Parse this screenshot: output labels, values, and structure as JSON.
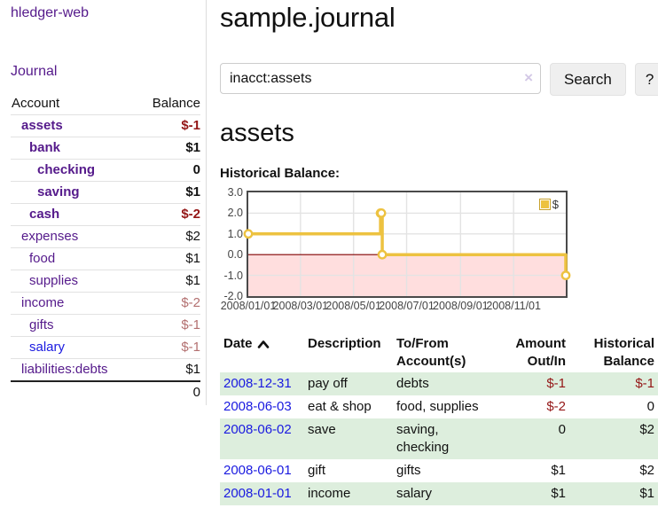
{
  "colors": {
    "link_purple": "#551a8b",
    "link_blue": "#1a1ae0",
    "negative": "#941616",
    "muted_negative": "#b37070",
    "row_green": "#ddeedd",
    "series_gold": "#edc240"
  },
  "sidebar": {
    "brand": "hledger-web",
    "journal_link": "Journal",
    "accounts_table": {
      "headers": [
        "Account",
        "Balance"
      ],
      "rows": [
        {
          "account": "assets",
          "balance": "$-1",
          "depth": 1,
          "bold": true,
          "balance_style": "negative"
        },
        {
          "account": "bank",
          "balance": "$1",
          "depth": 2,
          "bold": true,
          "balance_style": "normal"
        },
        {
          "account": "checking",
          "balance": "0",
          "depth": 3,
          "bold": true,
          "balance_style": "normal"
        },
        {
          "account": "saving",
          "balance": "$1",
          "depth": 3,
          "bold": true,
          "balance_style": "normal"
        },
        {
          "account": "cash",
          "balance": "$-2",
          "depth": 2,
          "bold": true,
          "balance_style": "negative"
        },
        {
          "account": "expenses",
          "balance": "$2",
          "depth": 1,
          "bold": false,
          "balance_style": "normal"
        },
        {
          "account": "food",
          "balance": "$1",
          "depth": 2,
          "bold": false,
          "balance_style": "normal"
        },
        {
          "account": "supplies",
          "balance": "$1",
          "depth": 2,
          "bold": false,
          "balance_style": "normal"
        },
        {
          "account": "income",
          "balance": "$-2",
          "depth": 1,
          "bold": false,
          "balance_style": "muted-negative"
        },
        {
          "account": "gifts",
          "balance": "$-1",
          "depth": 2,
          "bold": false,
          "balance_style": "muted-negative"
        },
        {
          "account": "salary",
          "balance": "$-1",
          "depth": 2,
          "bold": false,
          "balance_style": "muted-negative",
          "link_color": "blue"
        },
        {
          "account": "liabilities:debts",
          "balance": "$1",
          "depth": 1,
          "bold": false,
          "balance_style": "normal"
        }
      ],
      "total": "0"
    }
  },
  "header": {
    "title": "sample.journal"
  },
  "search": {
    "value": "inacct:assets",
    "clear_icon": "×",
    "button_label": "Search",
    "help_label": "?"
  },
  "account_page": {
    "title": "assets",
    "chart_title": "Historical Balance:"
  },
  "chart_data": {
    "type": "line",
    "step": true,
    "title": "Historical Balance:",
    "legend": "$",
    "legend_position": "top-right",
    "grid": true,
    "ylim": [
      -2.0,
      3.0
    ],
    "y_ticks": [
      "3.0",
      "2.0",
      "1.0",
      "0.0",
      "-1.0",
      "-2.0"
    ],
    "x_ticks": [
      "2008/01/01",
      "2008/03/01",
      "2008/05/01",
      "2008/07/01",
      "2008/09/01",
      "2008/11/01"
    ],
    "zero_line_color": "#800000",
    "negative_region_color": "rgba(255,0,0,0.13)",
    "series": [
      {
        "name": "$",
        "color": "#edc240",
        "points": [
          {
            "date": "2008-01-01",
            "value": 1
          },
          {
            "date": "2008-06-01",
            "value": 2
          },
          {
            "date": "2008-06-02",
            "value": 2
          },
          {
            "date": "2008-06-03",
            "value": 0
          },
          {
            "date": "2008-12-31",
            "value": -1
          }
        ]
      }
    ]
  },
  "register": {
    "headers": {
      "date": "Date",
      "sort_icon": "chevron-up",
      "description": "Description",
      "tofrom": "To/From Account(s)",
      "amount": "Amount Out/In",
      "balance": "Historical Balance"
    },
    "rows": [
      {
        "date": "2008-12-31",
        "description": "pay off",
        "accounts": "debts",
        "amount": "$-1",
        "amount_negative": true,
        "balance": "$-1",
        "balance_negative": true
      },
      {
        "date": "2008-06-03",
        "description": "eat & shop",
        "accounts": "food, supplies",
        "amount": "$-2",
        "amount_negative": true,
        "balance": "0",
        "balance_negative": false
      },
      {
        "date": "2008-06-02",
        "description": "save",
        "accounts": "saving, checking",
        "amount": "0",
        "amount_negative": false,
        "balance": "$2",
        "balance_negative": false
      },
      {
        "date": "2008-06-01",
        "description": "gift",
        "accounts": "gifts",
        "amount": "$1",
        "amount_negative": false,
        "balance": "$2",
        "balance_negative": false
      },
      {
        "date": "2008-01-01",
        "description": "income",
        "accounts": "salary",
        "amount": "$1",
        "amount_negative": false,
        "balance": "$1",
        "balance_negative": false
      }
    ]
  }
}
